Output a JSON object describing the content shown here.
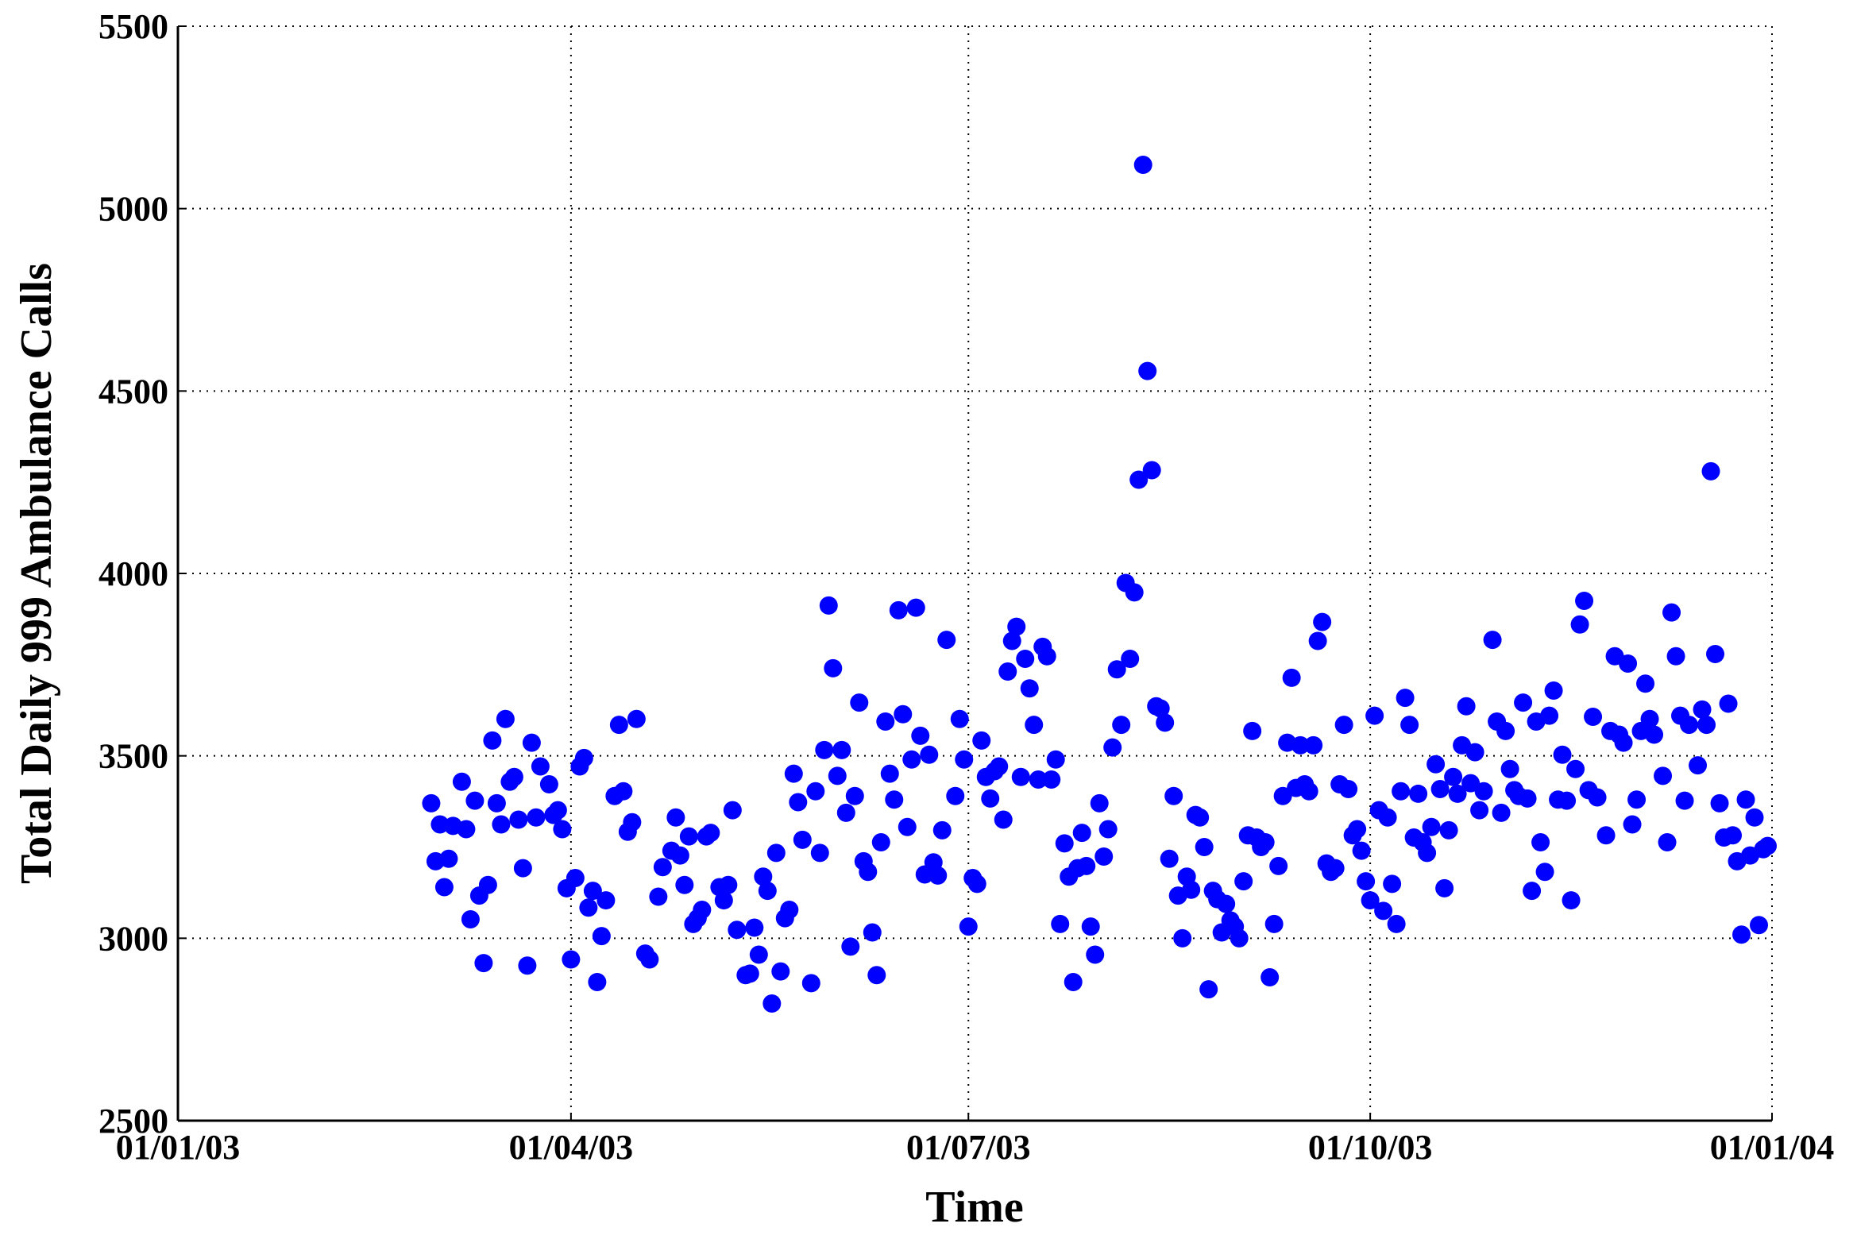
{
  "chart_data": {
    "type": "scatter",
    "x_label": "Time",
    "y_label": "Total Daily 999 Ambulance Calls",
    "color": "#0000ff",
    "grid": true,
    "xlim": [
      "2003-01-01",
      "2004-01-01"
    ],
    "xticks": [
      {
        "value": "2003-01-01",
        "label": "01/01/03"
      },
      {
        "value": "2003-04-01",
        "label": "01/04/03"
      },
      {
        "value": "2003-07-01",
        "label": "01/07/03"
      },
      {
        "value": "2003-10-01",
        "label": "01/10/03"
      },
      {
        "value": "2004-01-01",
        "label": "01/01/04"
      }
    ],
    "ylim": [
      2500,
      5500
    ],
    "yticks": [
      2500,
      3000,
      3500,
      4000,
      4500,
      5000,
      5500
    ],
    "x": [
      "2003-02-28",
      "2003-03-01",
      "2003-03-02",
      "2003-03-03",
      "2003-03-04",
      "2003-03-05",
      "2003-03-07",
      "2003-03-08",
      "2003-03-09",
      "2003-03-10",
      "2003-03-11",
      "2003-03-12",
      "2003-03-13",
      "2003-03-14",
      "2003-03-15",
      "2003-03-16",
      "2003-03-17",
      "2003-03-18",
      "2003-03-19",
      "2003-03-20",
      "2003-03-21",
      "2003-03-22",
      "2003-03-23",
      "2003-03-24",
      "2003-03-25",
      "2003-03-27",
      "2003-03-28",
      "2003-03-29",
      "2003-03-30",
      "2003-03-31",
      "2003-04-01",
      "2003-04-02",
      "2003-04-03",
      "2003-04-04",
      "2003-04-05",
      "2003-04-06",
      "2003-04-07",
      "2003-04-08",
      "2003-04-09",
      "2003-04-11",
      "2003-04-12",
      "2003-04-13",
      "2003-04-14",
      "2003-04-15",
      "2003-04-16",
      "2003-04-18",
      "2003-04-19",
      "2003-04-21",
      "2003-04-22",
      "2003-04-24",
      "2003-04-25",
      "2003-04-26",
      "2003-04-27",
      "2003-04-28",
      "2003-04-29",
      "2003-04-30",
      "2003-05-01",
      "2003-05-02",
      "2003-05-03",
      "2003-05-05",
      "2003-05-06",
      "2003-05-07",
      "2003-05-08",
      "2003-05-09",
      "2003-05-11",
      "2003-05-12",
      "2003-05-13",
      "2003-05-14",
      "2003-05-15",
      "2003-05-16",
      "2003-05-17",
      "2003-05-18",
      "2003-05-19",
      "2003-05-20",
      "2003-05-21",
      "2003-05-22",
      "2003-05-23",
      "2003-05-24",
      "2003-05-26",
      "2003-05-27",
      "2003-05-28",
      "2003-05-29",
      "2003-05-30",
      "2003-05-31",
      "2003-06-01",
      "2003-06-02",
      "2003-06-03",
      "2003-06-04",
      "2003-06-05",
      "2003-06-06",
      "2003-06-07",
      "2003-06-08",
      "2003-06-09",
      "2003-06-10",
      "2003-06-11",
      "2003-06-12",
      "2003-06-13",
      "2003-06-14",
      "2003-06-15",
      "2003-06-16",
      "2003-06-17",
      "2003-06-18",
      "2003-06-19",
      "2003-06-20",
      "2003-06-21",
      "2003-06-22",
      "2003-06-23",
      "2003-06-24",
      "2003-06-25",
      "2003-06-26",
      "2003-06-28",
      "2003-06-29",
      "2003-06-30",
      "2003-07-01",
      "2003-07-02",
      "2003-07-03",
      "2003-07-04",
      "2003-07-05",
      "2003-07-06",
      "2003-07-07",
      "2003-07-08",
      "2003-07-09",
      "2003-07-10",
      "2003-07-11",
      "2003-07-12",
      "2003-07-13",
      "2003-07-14",
      "2003-07-15",
      "2003-07-16",
      "2003-07-17",
      "2003-07-18",
      "2003-07-19",
      "2003-07-20",
      "2003-07-21",
      "2003-07-22",
      "2003-07-23",
      "2003-07-24",
      "2003-07-25",
      "2003-07-26",
      "2003-07-27",
      "2003-07-28",
      "2003-07-29",
      "2003-07-30",
      "2003-07-31",
      "2003-08-01",
      "2003-08-02",
      "2003-08-03",
      "2003-08-04",
      "2003-08-05",
      "2003-08-06",
      "2003-08-07",
      "2003-08-08",
      "2003-08-09",
      "2003-08-10",
      "2003-08-11",
      "2003-08-12",
      "2003-08-13",
      "2003-08-14",
      "2003-08-15",
      "2003-08-16",
      "2003-08-17",
      "2003-08-18",
      "2003-08-19",
      "2003-08-20",
      "2003-08-21",
      "2003-08-22",
      "2003-08-23",
      "2003-08-24",
      "2003-08-25",
      "2003-08-26",
      "2003-08-27",
      "2003-08-28",
      "2003-08-29",
      "2003-08-30",
      "2003-08-31",
      "2003-09-01",
      "2003-09-02",
      "2003-09-03",
      "2003-09-04",
      "2003-09-05",
      "2003-09-06",
      "2003-09-07",
      "2003-09-08",
      "2003-09-09",
      "2003-09-10",
      "2003-09-11",
      "2003-09-12",
      "2003-09-13",
      "2003-09-14",
      "2003-09-15",
      "2003-09-16",
      "2003-09-17",
      "2003-09-18",
      "2003-09-19",
      "2003-09-20",
      "2003-09-21",
      "2003-09-22",
      "2003-09-23",
      "2003-09-24",
      "2003-09-25",
      "2003-09-26",
      "2003-09-27",
      "2003-09-28",
      "2003-09-29",
      "2003-09-30",
      "2003-10-01",
      "2003-10-02",
      "2003-10-03",
      "2003-10-04",
      "2003-10-05",
      "2003-10-06",
      "2003-10-07",
      "2003-10-08",
      "2003-10-09",
      "2003-10-10",
      "2003-10-11",
      "2003-10-12",
      "2003-10-13",
      "2003-10-14",
      "2003-10-15",
      "2003-10-16",
      "2003-10-17",
      "2003-10-18",
      "2003-10-19",
      "2003-10-20",
      "2003-10-21",
      "2003-10-22",
      "2003-10-23",
      "2003-10-24",
      "2003-10-25",
      "2003-10-26",
      "2003-10-27",
      "2003-10-29",
      "2003-10-30",
      "2003-10-31",
      "2003-11-01",
      "2003-11-02",
      "2003-11-03",
      "2003-11-04",
      "2003-11-05",
      "2003-11-06",
      "2003-11-07",
      "2003-11-08",
      "2003-11-09",
      "2003-11-10",
      "2003-11-11",
      "2003-11-12",
      "2003-11-13",
      "2003-11-14",
      "2003-11-15",
      "2003-11-16",
      "2003-11-17",
      "2003-11-18",
      "2003-11-19",
      "2003-11-20",
      "2003-11-21",
      "2003-11-22",
      "2003-11-24",
      "2003-11-25",
      "2003-11-26",
      "2003-11-27",
      "2003-11-28",
      "2003-11-29",
      "2003-11-30",
      "2003-12-01",
      "2003-12-02",
      "2003-12-03",
      "2003-12-04",
      "2003-12-05",
      "2003-12-07",
      "2003-12-08",
      "2003-12-09",
      "2003-12-10",
      "2003-12-11",
      "2003-12-12",
      "2003-12-13",
      "2003-12-15",
      "2003-12-16",
      "2003-12-17",
      "2003-12-18",
      "2003-12-19",
      "2003-12-20",
      "2003-12-21",
      "2003-12-22",
      "2003-12-23",
      "2003-12-24",
      "2003-12-25",
      "2003-12-26",
      "2003-12-27",
      "2003-12-28",
      "2003-12-29",
      "2003-12-30",
      "2003-12-31"
    ],
    "values": [
      3370,
      3211,
      3312,
      3140,
      3218,
      3308,
      3429,
      3299,
      3052,
      3377,
      3117,
      2932,
      3146,
      3542,
      3370,
      3312,
      3601,
      3429,
      3442,
      3325,
      3192,
      2925,
      3536,
      3331,
      3471,
      3422,
      3338,
      3351,
      3299,
      3137,
      2942,
      3165,
      3471,
      3494,
      3084,
      3130,
      2880,
      3006,
      3104,
      3390,
      3585,
      3403,
      3292,
      3318,
      3601,
      2958,
      2942,
      3114,
      3195,
      3240,
      3331,
      3227,
      3146,
      3279,
      3039,
      3055,
      3078,
      3279,
      3289,
      3140,
      3104,
      3146,
      3351,
      3023,
      2899,
      2903,
      3029,
      2955,
      3169,
      3130,
      2821,
      3234,
      2909,
      3055,
      3078,
      3451,
      3373,
      3270,
      2877,
      3403,
      3234,
      3516,
      3912,
      3740,
      3445,
      3516,
      3344,
      2977,
      3390,
      3646,
      3211,
      3182,
      3016,
      2899,
      3263,
      3594,
      3451,
      3380,
      3899,
      3614,
      3305,
      3490,
      3906,
      3555,
      3175,
      3503,
      3208,
      3172,
      3296,
      3818,
      3390,
      3601,
      3490,
      3032,
      3165,
      3149,
      3542,
      3442,
      3383,
      3458,
      3471,
      3325,
      3731,
      3815,
      3854,
      3442,
      3766,
      3685,
      3585,
      3435,
      3799,
      3773,
      3435,
      3490,
      3039,
      3260,
      3169,
      2880,
      3192,
      3289,
      3198,
      3032,
      2955,
      3370,
      3224,
      3299,
      3523,
      3737,
      3585,
      3974,
      3766,
      3948,
      4257,
      5120,
      4555,
      4283,
      3636,
      3630,
      3591,
      3218,
      3390,
      3117,
      3000,
      3169,
      3133,
      3338,
      3331,
      3250,
      2860,
      3130,
      3107,
      3016,
      3094,
      3049,
      3032,
      3000,
      3156,
      3282,
      3568,
      3276,
      3250,
      3263,
      2893,
      3039,
      3198,
      3390,
      3536,
      3714,
      3412,
      3529,
      3422,
      3403,
      3529,
      3815,
      3867,
      3205,
      3182,
      3192,
      3422,
      3585,
      3409,
      3282,
      3299,
      3240,
      3156,
      3104,
      3610,
      3351,
      3075,
      3331,
      3149,
      3039,
      3403,
      3659,
      3585,
      3276,
      3396,
      3263,
      3234,
      3305,
      3477,
      3409,
      3137,
      3296,
      3442,
      3396,
      3529,
      3636,
      3425,
      3510,
      3351,
      3403,
      3818,
      3594,
      3344,
      3568,
      3464,
      3406,
      3390,
      3646,
      3383,
      3130,
      3594,
      3263,
      3182,
      3610,
      3679,
      3380,
      3503,
      3377,
      3104,
      3464,
      3860,
      3925,
      3406,
      3607,
      3386,
      3282,
      3568,
      3773,
      3558,
      3536,
      3753,
      3312,
      3380,
      3568,
      3698,
      3601,
      3558,
      3445,
      3263,
      3893,
      3773,
      3610,
      3377,
      3585,
      3474,
      3627,
      3585,
      4280,
      3779,
      3370,
      3276,
      3643,
      3282,
      3211,
      3010,
      3380,
      3227,
      3331,
      3036,
      3244,
      3253
    ]
  }
}
